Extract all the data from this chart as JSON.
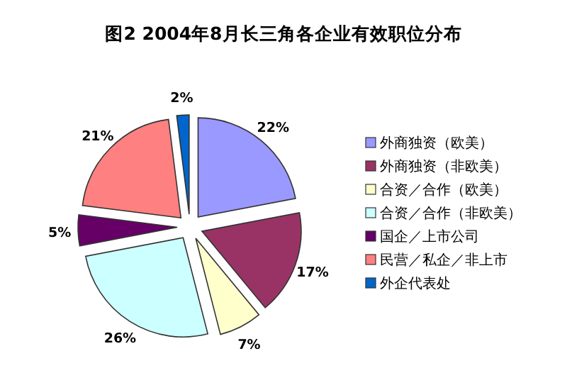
{
  "chart_data": {
    "type": "pie",
    "title": "图2 2004年8月长三角各企业有效职位分布",
    "categories": [
      "外商独资（欧美）",
      "外商独资（非欧美）",
      "合资／合作（欧美）",
      "合资／合作（非欧美）",
      "国企／上市公司",
      "民营／私企／非上市",
      "外企代表处"
    ],
    "values": [
      22,
      17,
      7,
      26,
      5,
      21,
      2
    ],
    "value_labels": [
      "22%",
      "17%",
      "7%",
      "26%",
      "5%",
      "21%",
      "2%"
    ],
    "colors": [
      "#9999ff",
      "#993366",
      "#ffffcc",
      "#ccffff",
      "#660066",
      "#ff8080",
      "#0066cc"
    ],
    "legend": "right"
  }
}
